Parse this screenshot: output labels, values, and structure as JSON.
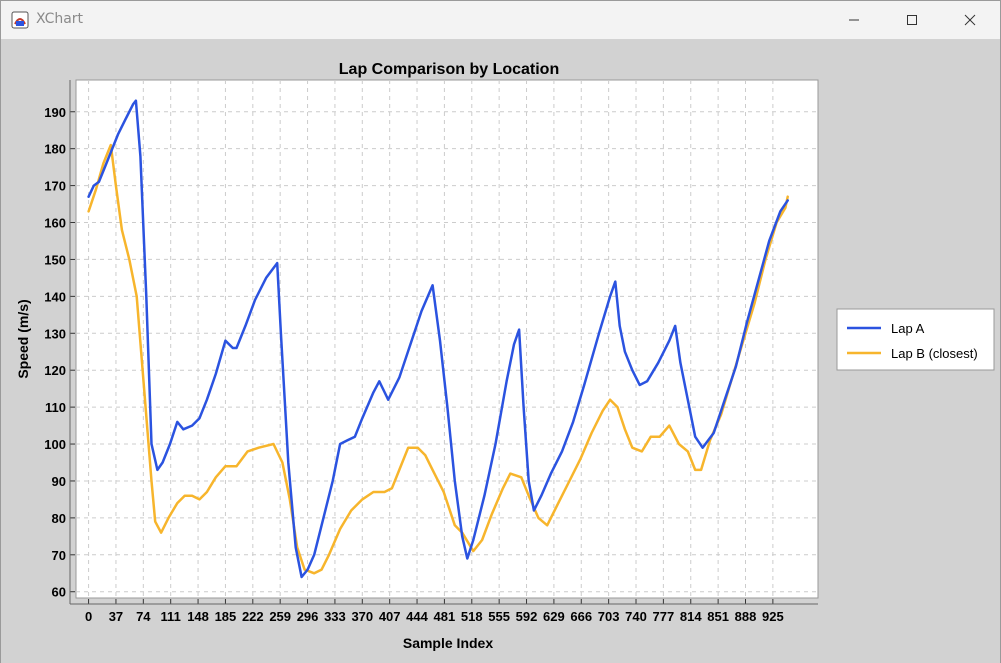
{
  "window": {
    "title": "XChart",
    "icon": "java-app-icon",
    "controls": [
      "minimize-icon",
      "maximize-icon",
      "close-icon"
    ]
  },
  "colors": {
    "lap_a": "#2b53e0",
    "lap_b": "#f7b52c",
    "background": "#d2d2d2",
    "plot_background": "#ffffff",
    "grid": "#cccccc"
  },
  "chart_data": {
    "type": "line",
    "title": "Lap Comparison by Location",
    "xlabel": "Sample Index",
    "ylabel": "Speed (m/s)",
    "xlim": [
      -17,
      986
    ],
    "ylim": [
      58.3,
      198.6
    ],
    "grid": true,
    "legend_position": "outside-right",
    "x_ticks": [
      0,
      37,
      74,
      111,
      148,
      185,
      222,
      259,
      296,
      333,
      370,
      407,
      444,
      481,
      518,
      555,
      592,
      629,
      666,
      703,
      740,
      777,
      814,
      851,
      888,
      925
    ],
    "y_ticks": [
      60,
      70,
      80,
      90,
      100,
      110,
      120,
      130,
      140,
      150,
      160,
      170,
      180,
      190
    ],
    "series": [
      {
        "name": "Lap A",
        "color": "#2b53e0",
        "points": [
          [
            0,
            167
          ],
          [
            7,
            170
          ],
          [
            14,
            171
          ],
          [
            22,
            175
          ],
          [
            30,
            179
          ],
          [
            40,
            184
          ],
          [
            50,
            188
          ],
          [
            60,
            192
          ],
          [
            64,
            193
          ],
          [
            70,
            178
          ],
          [
            78,
            140
          ],
          [
            85,
            100
          ],
          [
            93,
            93
          ],
          [
            100,
            95
          ],
          [
            110,
            100
          ],
          [
            120,
            106
          ],
          [
            128,
            104
          ],
          [
            140,
            105
          ],
          [
            150,
            107
          ],
          [
            160,
            112
          ],
          [
            172,
            119
          ],
          [
            185,
            128
          ],
          [
            195,
            126
          ],
          [
            200,
            126
          ],
          [
            212,
            132
          ],
          [
            225,
            139
          ],
          [
            240,
            145
          ],
          [
            255,
            149
          ],
          [
            260,
            130
          ],
          [
            270,
            95
          ],
          [
            280,
            72
          ],
          [
            288,
            64
          ],
          [
            296,
            66
          ],
          [
            305,
            70
          ],
          [
            315,
            78
          ],
          [
            330,
            90
          ],
          [
            340,
            100
          ],
          [
            350,
            101
          ],
          [
            360,
            102
          ],
          [
            370,
            107
          ],
          [
            385,
            114
          ],
          [
            393,
            117
          ],
          [
            405,
            112
          ],
          [
            420,
            118
          ],
          [
            435,
            127
          ],
          [
            450,
            136
          ],
          [
            465,
            143
          ],
          [
            475,
            128
          ],
          [
            485,
            110
          ],
          [
            495,
            90
          ],
          [
            505,
            75
          ],
          [
            512,
            69
          ],
          [
            520,
            74
          ],
          [
            535,
            86
          ],
          [
            550,
            100
          ],
          [
            565,
            117
          ],
          [
            575,
            127
          ],
          [
            582,
            131
          ],
          [
            588,
            110
          ],
          [
            595,
            90
          ],
          [
            602,
            82
          ],
          [
            612,
            86
          ],
          [
            625,
            92
          ],
          [
            640,
            98
          ],
          [
            655,
            106
          ],
          [
            670,
            116
          ],
          [
            690,
            130
          ],
          [
            705,
            140
          ],
          [
            712,
            144
          ],
          [
            718,
            132
          ],
          [
            725,
            125
          ],
          [
            735,
            120
          ],
          [
            745,
            116
          ],
          [
            755,
            117
          ],
          [
            770,
            122
          ],
          [
            785,
            128
          ],
          [
            793,
            132
          ],
          [
            800,
            122
          ],
          [
            810,
            112
          ],
          [
            820,
            102
          ],
          [
            830,
            99
          ],
          [
            845,
            103
          ],
          [
            860,
            112
          ],
          [
            875,
            121
          ],
          [
            890,
            133
          ],
          [
            905,
            144
          ],
          [
            920,
            155
          ],
          [
            935,
            163
          ],
          [
            945,
            166
          ]
        ]
      },
      {
        "name": "Lap B (closest)",
        "color": "#f7b52c",
        "points": [
          [
            0,
            163
          ],
          [
            10,
            169
          ],
          [
            20,
            176
          ],
          [
            30,
            181
          ],
          [
            37,
            170
          ],
          [
            45,
            158
          ],
          [
            55,
            150
          ],
          [
            65,
            140
          ],
          [
            75,
            115
          ],
          [
            85,
            90
          ],
          [
            90,
            79
          ],
          [
            98,
            76
          ],
          [
            108,
            80
          ],
          [
            120,
            84
          ],
          [
            130,
            86
          ],
          [
            140,
            86
          ],
          [
            150,
            85
          ],
          [
            160,
            87
          ],
          [
            172,
            91
          ],
          [
            185,
            94
          ],
          [
            200,
            94
          ],
          [
            215,
            98
          ],
          [
            230,
            99
          ],
          [
            250,
            100
          ],
          [
            262,
            95
          ],
          [
            272,
            85
          ],
          [
            282,
            72
          ],
          [
            292,
            66
          ],
          [
            305,
            65
          ],
          [
            315,
            66
          ],
          [
            325,
            70
          ],
          [
            340,
            77
          ],
          [
            355,
            82
          ],
          [
            370,
            85
          ],
          [
            385,
            87
          ],
          [
            400,
            87
          ],
          [
            410,
            88
          ],
          [
            420,
            93
          ],
          [
            432,
            99
          ],
          [
            445,
            99
          ],
          [
            455,
            97
          ],
          [
            465,
            93
          ],
          [
            480,
            87
          ],
          [
            495,
            78
          ],
          [
            505,
            76
          ],
          [
            520,
            71
          ],
          [
            532,
            74
          ],
          [
            545,
            81
          ],
          [
            560,
            88
          ],
          [
            570,
            92
          ],
          [
            585,
            91
          ],
          [
            595,
            86
          ],
          [
            608,
            80
          ],
          [
            620,
            78
          ],
          [
            635,
            84
          ],
          [
            650,
            90
          ],
          [
            665,
            96
          ],
          [
            680,
            103
          ],
          [
            695,
            109
          ],
          [
            705,
            112
          ],
          [
            715,
            110
          ],
          [
            725,
            104
          ],
          [
            735,
            99
          ],
          [
            748,
            98
          ],
          [
            760,
            102
          ],
          [
            772,
            102
          ],
          [
            785,
            105
          ],
          [
            798,
            100
          ],
          [
            810,
            98
          ],
          [
            820,
            93
          ],
          [
            828,
            93
          ],
          [
            840,
            101
          ],
          [
            855,
            108
          ],
          [
            870,
            118
          ],
          [
            885,
            128
          ],
          [
            900,
            138
          ],
          [
            915,
            150
          ],
          [
            930,
            160
          ],
          [
            942,
            164
          ],
          [
            945,
            167
          ]
        ]
      }
    ]
  }
}
